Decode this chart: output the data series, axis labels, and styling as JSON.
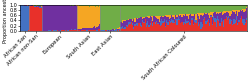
{
  "populations": [
    {
      "name": "African San",
      "n": 7,
      "alpha": 80,
      "components": [
        0.02,
        0.95,
        0.01,
        0.01,
        0.01
      ]
    },
    {
      "name": "African non-San",
      "n": 10,
      "alpha": 80,
      "components": [
        0.93,
        0.02,
        0.02,
        0.01,
        0.02
      ]
    },
    {
      "name": "European",
      "n": 28,
      "alpha": 100,
      "components": [
        0.02,
        0.01,
        0.95,
        0.01,
        0.01
      ]
    },
    {
      "name": "South Asian",
      "n": 18,
      "alpha": 60,
      "components": [
        0.03,
        0.01,
        0.08,
        0.84,
        0.04
      ]
    },
    {
      "name": "East Asian",
      "n": 16,
      "alpha": 100,
      "components": [
        0.01,
        0.01,
        0.02,
        0.02,
        0.94
      ]
    },
    {
      "name": "South African Coloured",
      "n": 100,
      "alpha": 18,
      "components": [
        0.28,
        0.09,
        0.2,
        0.06,
        0.37
      ]
    }
  ],
  "colors": [
    "#e8302a",
    "#4472c4",
    "#7030a0",
    "#f5a623",
    "#70ad47"
  ],
  "ylabel": "Proportion ancestry",
  "ylim": [
    0,
    1.0
  ],
  "yticks": [
    0.0,
    0.2,
    0.4,
    0.6,
    0.8,
    1.0
  ],
  "background_color": "#ffffff"
}
